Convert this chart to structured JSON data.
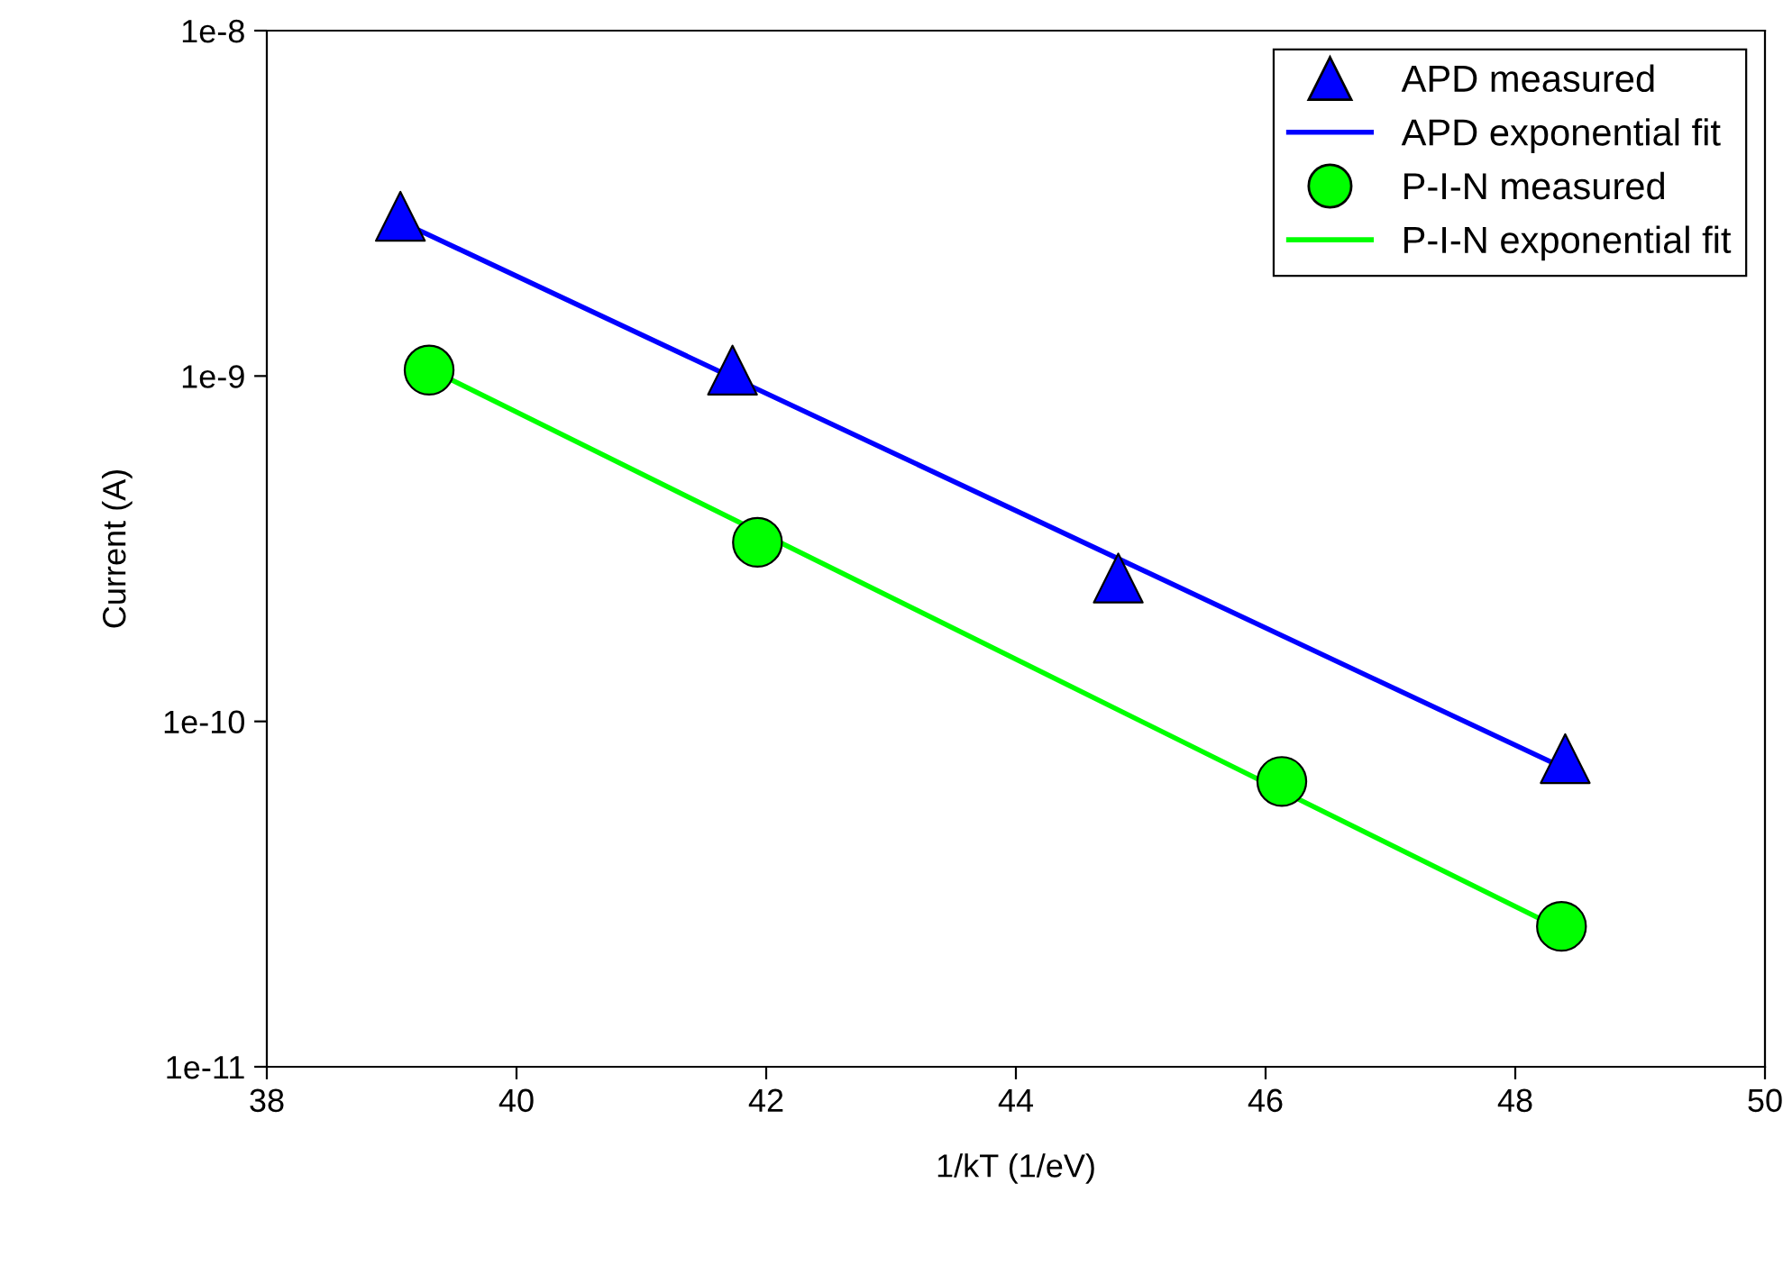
{
  "chart_data": {
    "type": "scatter",
    "xlabel": "1/kT (1/eV)",
    "ylabel": "Current (A)",
    "log": "y",
    "grid": false,
    "legend": "top right",
    "xlim": [
      38,
      50
    ],
    "xticks": [
      38,
      40,
      42,
      44,
      46,
      48,
      50
    ],
    "ylim": [
      1e-11,
      1e-08
    ],
    "yticks": [
      {
        "value": 1e-11,
        "label": "1e-11"
      },
      {
        "value": 1e-10,
        "label": "1e-10"
      },
      {
        "value": 1e-09,
        "label": "1e-9"
      },
      {
        "value": 1e-08,
        "label": "1e-8"
      }
    ],
    "series": [
      {
        "name": "APD measured",
        "marker": "triangle",
        "color": "#0000ff",
        "x": [
          39.07,
          41.73,
          44.82,
          48.4
        ],
        "values": [
          2.9e-09,
          1.04e-09,
          2.6e-10,
          7.8e-11
        ]
      },
      {
        "name": "APD exponential fit",
        "type": "line",
        "marker": "none",
        "line_style": "solid",
        "color": "#0000ff",
        "x": [
          39.07,
          48.4
        ],
        "values": [
          2.8e-09,
          7.3e-11
        ]
      },
      {
        "name": "P-I-N measured",
        "marker": "circle",
        "color": "#00ff00",
        "x": [
          39.3,
          41.93,
          46.13,
          48.37
        ],
        "values": [
          1.04e-09,
          3.3e-10,
          6.7e-11,
          2.55e-11
        ]
      },
      {
        "name": "P-I-N exponential fit",
        "type": "line",
        "marker": "none",
        "line_style": "solid",
        "color": "#00ff00",
        "x": [
          39.3,
          48.37
        ],
        "values": [
          1.05e-09,
          2.5e-11
        ]
      }
    ]
  }
}
